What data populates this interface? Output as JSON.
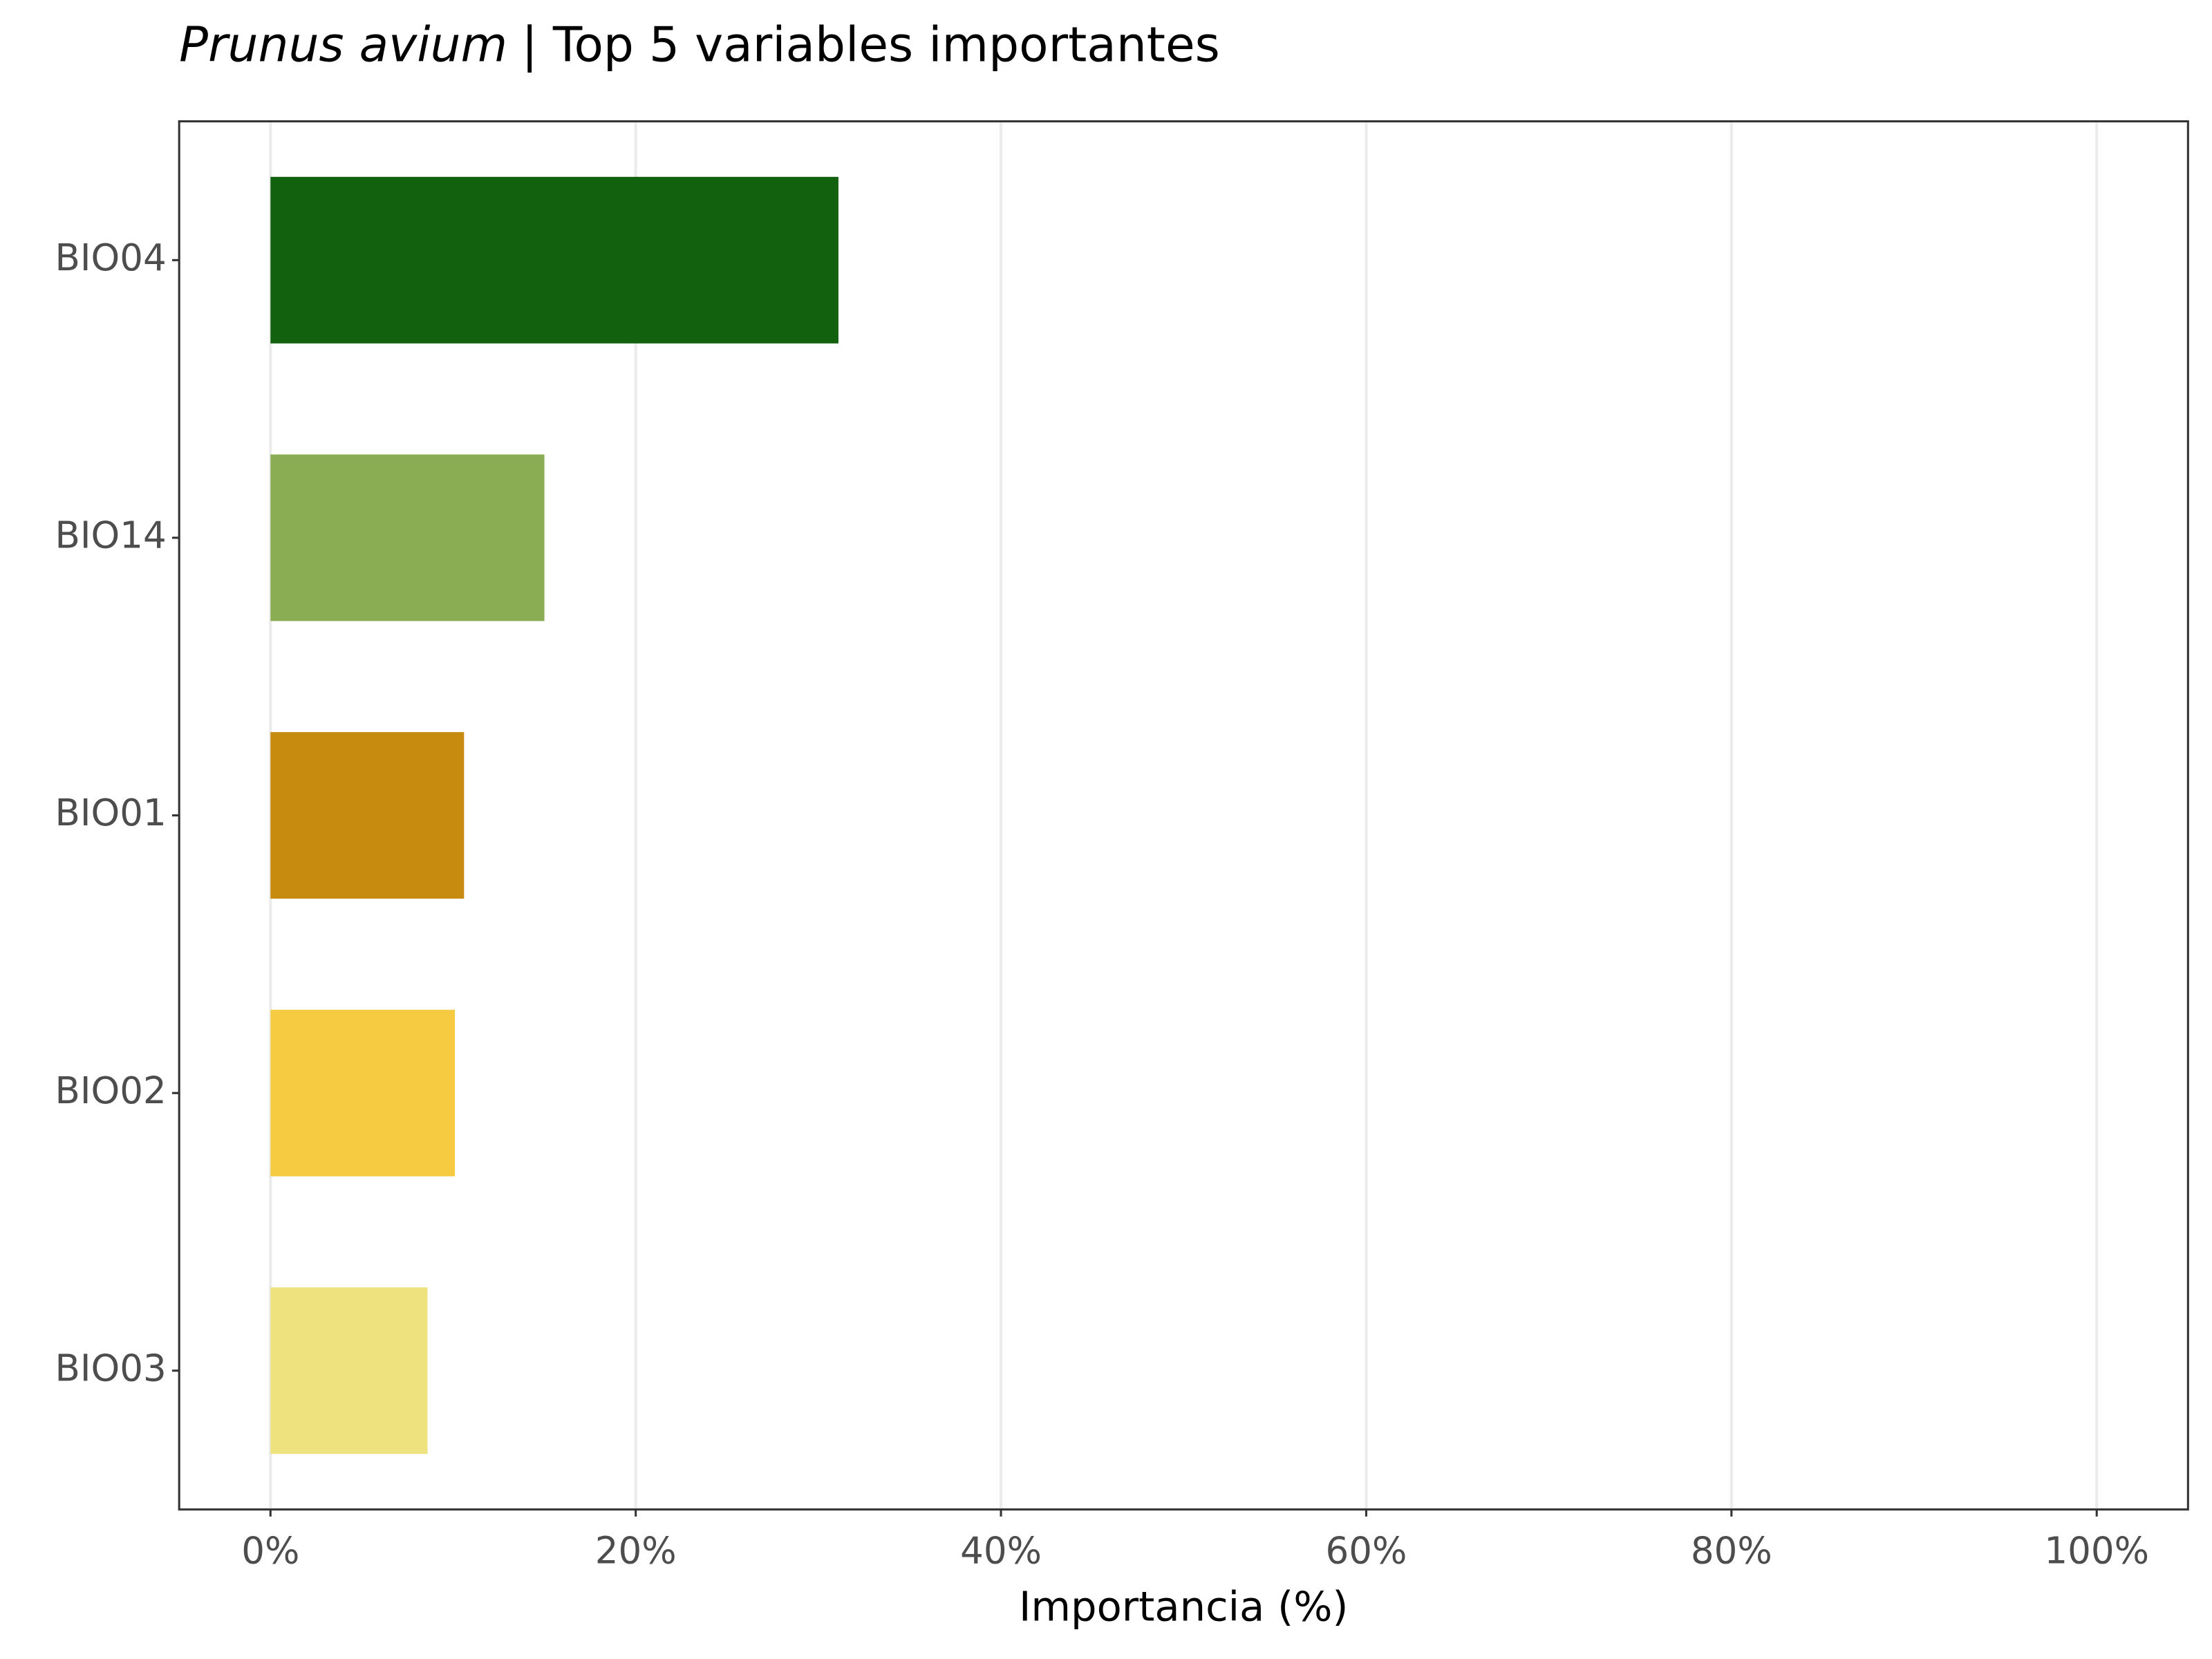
{
  "chart_data": {
    "type": "barh",
    "title_species": "Prunus avium",
    "title": "| Top 5 variables importantes",
    "x_label": "Importancia (%)",
    "categories": [
      "BIO04",
      "BIO14",
      "BIO01",
      "BIO02",
      "BIO03"
    ],
    "values": [
      31.1,
      15.0,
      10.6,
      10.1,
      8.6
    ],
    "colors": [
      "#11610e",
      "#8aad53",
      "#c78b0f",
      "#f6cb42",
      "#ede27d"
    ],
    "xlim": [
      -5,
      105
    ],
    "xticks": [
      {
        "value": 0,
        "label": "0%"
      },
      {
        "value": 20,
        "label": "20%"
      },
      {
        "value": 40,
        "label": "40%"
      },
      {
        "value": 60,
        "label": "60%"
      },
      {
        "value": 80,
        "label": "80%"
      },
      {
        "value": 100,
        "label": "100%"
      }
    ],
    "grid": true
  }
}
